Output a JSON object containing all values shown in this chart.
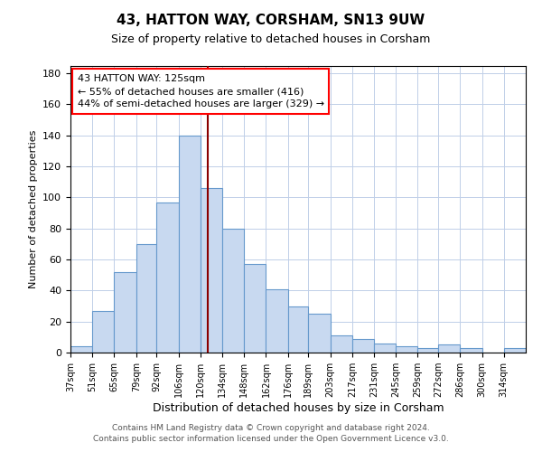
{
  "title": "43, HATTON WAY, CORSHAM, SN13 9UW",
  "subtitle": "Size of property relative to detached houses in Corsham",
  "xlabel": "Distribution of detached houses by size in Corsham",
  "ylabel": "Number of detached properties",
  "bar_color": "#c8d9f0",
  "bar_edge_color": "#6699cc",
  "background_color": "#ffffff",
  "grid_color": "#c0cfe8",
  "vline_x": 125,
  "vline_color": "#8b0000",
  "annotation_title": "43 HATTON WAY: 125sqm",
  "annotation_line1": "← 55% of detached houses are smaller (416)",
  "annotation_line2": "44% of semi-detached houses are larger (329) →",
  "bin_labels": [
    "37sqm",
    "51sqm",
    "65sqm",
    "79sqm",
    "92sqm",
    "106sqm",
    "120sqm",
    "134sqm",
    "148sqm",
    "162sqm",
    "176sqm",
    "189sqm",
    "203sqm",
    "217sqm",
    "231sqm",
    "245sqm",
    "259sqm",
    "272sqm",
    "286sqm",
    "300sqm",
    "314sqm"
  ],
  "bin_edges": [
    37,
    51,
    65,
    79,
    92,
    106,
    120,
    134,
    148,
    162,
    176,
    189,
    203,
    217,
    231,
    245,
    259,
    272,
    286,
    300,
    314,
    328
  ],
  "bar_heights": [
    4,
    27,
    52,
    70,
    97,
    140,
    106,
    80,
    57,
    41,
    30,
    25,
    11,
    9,
    6,
    4,
    3,
    5,
    3,
    0,
    3
  ],
  "ylim": [
    0,
    185
  ],
  "yticks": [
    0,
    20,
    40,
    60,
    80,
    100,
    120,
    140,
    160,
    180
  ],
  "footer1": "Contains HM Land Registry data © Crown copyright and database right 2024.",
  "footer2": "Contains public sector information licensed under the Open Government Licence v3.0."
}
